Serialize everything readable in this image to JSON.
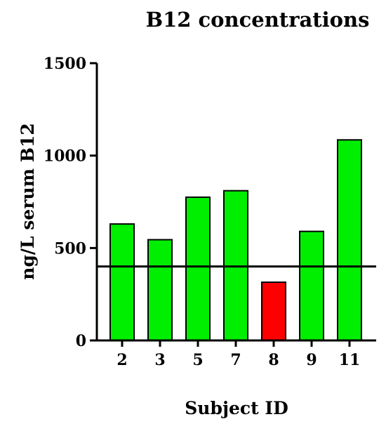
{
  "chart_data": {
    "type": "bar",
    "title": "B12 concentrations",
    "xlabel": "Subject ID",
    "ylabel": "ng/L serum B12",
    "categories": [
      "2",
      "3",
      "5",
      "7",
      "8",
      "9",
      "11"
    ],
    "values": [
      630,
      545,
      775,
      810,
      315,
      590,
      1085
    ],
    "bar_colors": [
      "#00ee00",
      "#00ee00",
      "#00ee00",
      "#00ee00",
      "#ff0000",
      "#00ee00",
      "#00ee00"
    ],
    "ylim": [
      0,
      1500
    ],
    "yticks": [
      "0",
      "500",
      "1000",
      "1500"
    ],
    "reference_line": 400,
    "grid": false,
    "legend": "none"
  }
}
